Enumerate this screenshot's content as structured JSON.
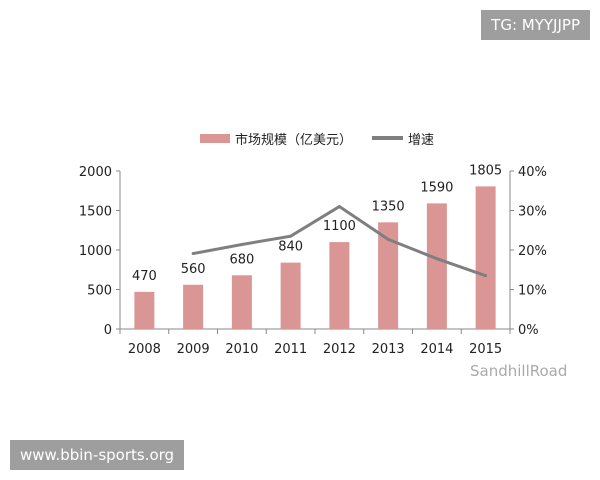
{
  "watermarks": {
    "top": "TG: MYYJJPP",
    "bottom": "www.bbin-sports.org",
    "overlay": "SandhillRoad"
  },
  "chart_data": {
    "type": "bar+line",
    "categories": [
      "2008",
      "2009",
      "2010",
      "2011",
      "2012",
      "2013",
      "2014",
      "2015"
    ],
    "series": [
      {
        "name": "市场规模（亿美元）",
        "type": "bar",
        "axis": "left",
        "color": "#d99694",
        "values": [
          470,
          560,
          680,
          840,
          1100,
          1350,
          1590,
          1805
        ]
      },
      {
        "name": "增速",
        "type": "line",
        "axis": "right",
        "color": "#7f7f7f",
        "values": [
          null,
          19.1,
          21.4,
          23.5,
          31.0,
          22.7,
          17.8,
          13.5
        ]
      }
    ],
    "left_axis": {
      "ylim": [
        0,
        2000
      ],
      "ticks": [
        "0",
        "500",
        "1000",
        "1500",
        "2000"
      ]
    },
    "right_axis": {
      "ylim": [
        0,
        40
      ],
      "ticks": [
        "0%",
        "10%",
        "20%",
        "30%",
        "40%"
      ]
    },
    "legend_position": "top",
    "grid": false
  }
}
